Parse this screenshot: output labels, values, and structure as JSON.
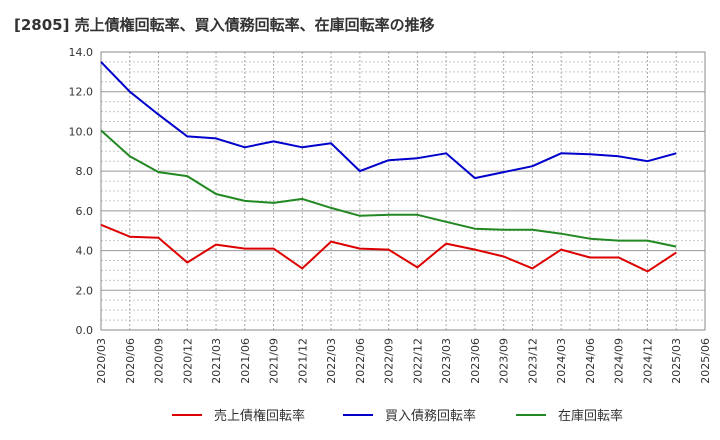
{
  "chart_data": {
    "type": "line",
    "title": "[2805]  売上債権回転率、買入債務回転率、在庫回転率の推移",
    "xlabel": "",
    "ylabel": "",
    "ylim": [
      0,
      14
    ],
    "yticks": [
      0.0,
      2.0,
      4.0,
      6.0,
      8.0,
      10.0,
      12.0,
      14.0
    ],
    "ytick_labels": [
      "0.0",
      "2.0",
      "4.0",
      "6.0",
      "8.0",
      "10.0",
      "12.0",
      "14.0"
    ],
    "x": [
      "2020/03",
      "2020/06",
      "2020/09",
      "2020/12",
      "2021/03",
      "2021/06",
      "2021/09",
      "2021/12",
      "2022/03",
      "2022/06",
      "2022/09",
      "2022/12",
      "2023/03",
      "2023/06",
      "2023/09",
      "2023/12",
      "2024/03",
      "2024/06",
      "2024/09",
      "2024/12",
      "2025/03",
      "2025/06"
    ],
    "grid": true,
    "legend_position": "bottom",
    "series": [
      {
        "name": "売上債権回転率",
        "color": "#dd0000",
        "values": [
          5.3,
          4.7,
          4.65,
          3.4,
          4.3,
          4.1,
          4.1,
          3.1,
          4.45,
          4.1,
          4.05,
          3.15,
          4.35,
          4.05,
          3.7,
          3.1,
          4.05,
          3.65,
          3.65,
          2.95,
          3.9,
          null
        ]
      },
      {
        "name": "買入債務回転率",
        "color": "#0000cc",
        "values": [
          13.5,
          12.0,
          10.85,
          9.75,
          9.65,
          9.2,
          9.5,
          9.2,
          9.4,
          8.0,
          8.55,
          8.65,
          8.9,
          7.65,
          7.95,
          8.25,
          8.9,
          8.85,
          8.75,
          8.5,
          8.9,
          null
        ]
      },
      {
        "name": "在庫回転率",
        "color": "#228822",
        "values": [
          10.05,
          8.75,
          7.95,
          7.75,
          6.85,
          6.5,
          6.4,
          6.6,
          6.15,
          5.75,
          5.8,
          5.8,
          5.45,
          5.1,
          5.05,
          5.05,
          4.85,
          4.6,
          4.5,
          4.5,
          4.2,
          null
        ]
      }
    ]
  }
}
